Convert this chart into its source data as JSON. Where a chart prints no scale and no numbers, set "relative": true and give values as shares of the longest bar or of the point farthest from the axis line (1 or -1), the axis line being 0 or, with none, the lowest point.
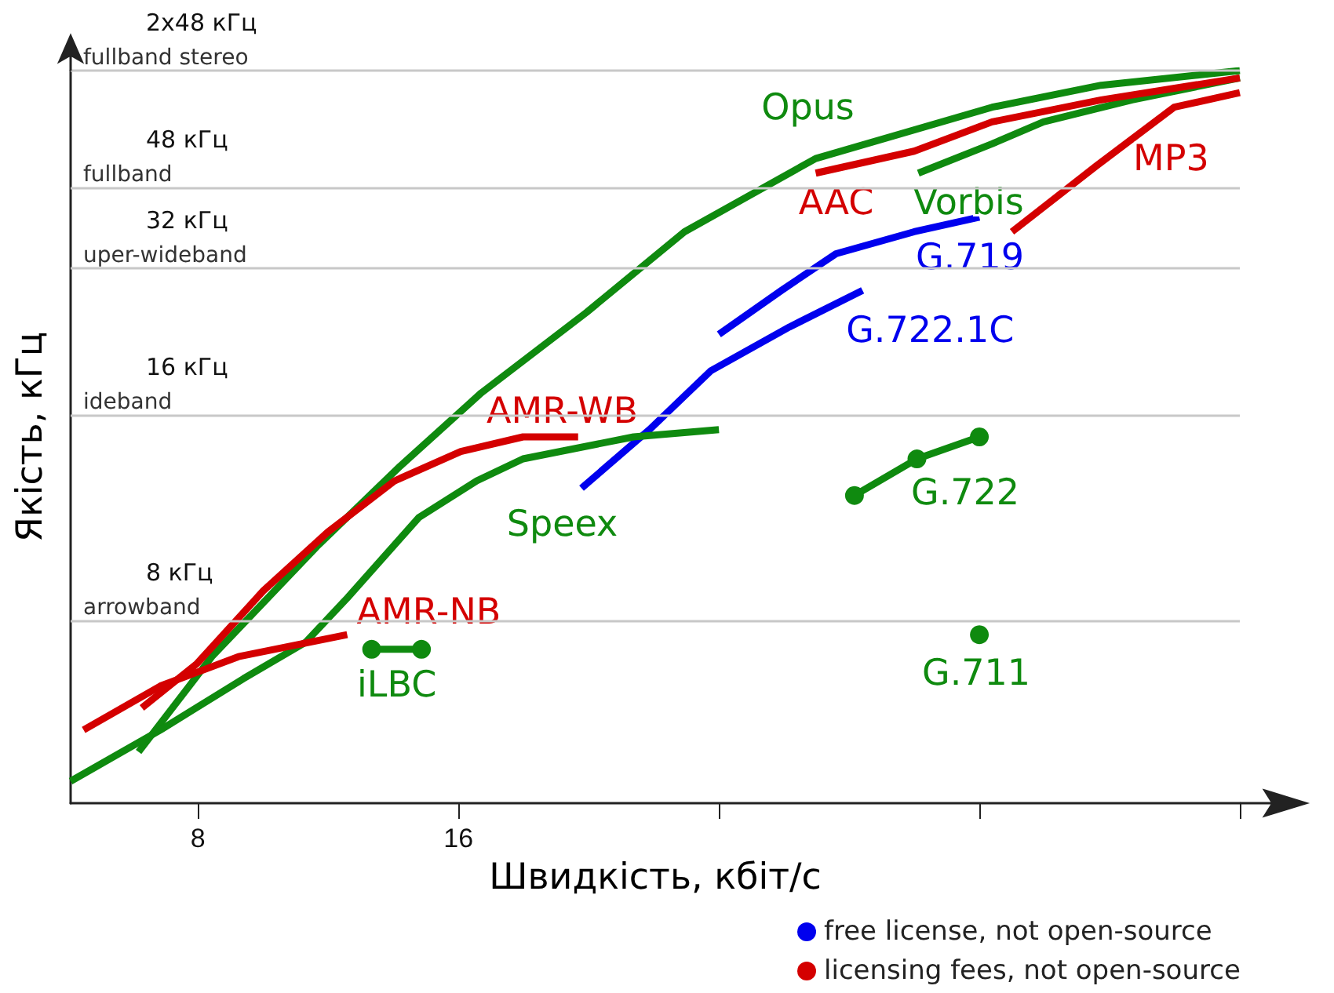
{
  "chart_data": {
    "type": "line",
    "relative": true,
    "xlabel": "Швидкість, кбіт/с",
    "ylabel": "Якість, кГц",
    "log": "x",
    "xlim": [
      5.7,
      128
    ],
    "xticks": [
      8,
      16,
      {
        "value": 32,
        "label": null
      },
      {
        "value": 64,
        "label": null
      },
      {
        "value": 128,
        "label": null
      }
    ],
    "series": [
      {
        "name": "Opus",
        "color": "#0f8a0f",
        "x": [
          6.83,
          8.3,
          10.97,
          13.7,
          17.0,
          22.5,
          29.2,
          41.4,
          66.2,
          88.5,
          128
        ],
        "values": [
          0.07,
          0.2,
          0.35,
          0.46,
          0.56,
          0.67,
          0.78,
          0.88,
          0.95,
          0.98,
          1.0
        ]
      },
      {
        "name": "Vorbis",
        "color": "#0f8a0f",
        "x": [
          54.4,
          66.2,
          75.9,
          96.1,
          128
        ],
        "values": [
          0.86,
          0.9,
          0.93,
          0.96,
          0.99
        ]
      },
      {
        "name": "AAC",
        "color": "#d40000",
        "x": [
          41.4,
          53.8,
          66.2,
          88.5,
          128
        ],
        "values": [
          0.86,
          0.89,
          0.93,
          0.96,
          0.99
        ]
      },
      {
        "name": "MP3",
        "color": "#d40000",
        "x": [
          69.8,
          87.4,
          107.5,
          128
        ],
        "values": [
          0.78,
          0.87,
          0.95,
          0.97
        ]
      },
      {
        "name": "G.719",
        "color": "#0000ee",
        "x": [
          32,
          37.8,
          43.7,
          53.8,
          64
        ],
        "values": [
          0.64,
          0.7,
          0.75,
          0.78,
          0.8
        ]
      },
      {
        "name": "G.722.1C",
        "color": "#0000ee",
        "x": [
          22.2,
          26.6,
          31.3,
          38.6,
          46.9
        ],
        "values": [
          0.43,
          0.51,
          0.59,
          0.65,
          0.7
        ]
      },
      {
        "name": "Speex",
        "color": "#0f8a0f",
        "x": [
          5.7,
          7.24,
          9.03,
          10.66,
          11.9,
          14.4,
          16.8,
          19.0,
          25.5,
          32
        ],
        "values": [
          0.03,
          0.1,
          0.17,
          0.22,
          0.28,
          0.39,
          0.44,
          0.47,
          0.5,
          0.51
        ]
      },
      {
        "name": "AMR-WB",
        "color": "#d40000",
        "x": [
          6.89,
          7.97,
          9.52,
          11.3,
          13.5,
          16.1,
          19.0,
          22.0
        ],
        "values": [
          0.13,
          0.19,
          0.29,
          0.37,
          0.44,
          0.48,
          0.5,
          0.5
        ]
      },
      {
        "name": "G.722",
        "color": "#0f8a0f",
        "marker": "circle",
        "x": [
          45.9,
          54.2,
          64
        ],
        "values": [
          0.42,
          0.47,
          0.5
        ]
      },
      {
        "name": "AMR-NB",
        "color": "#d40000",
        "x": [
          5.9,
          7.24,
          8.91,
          11.9
        ],
        "values": [
          0.1,
          0.16,
          0.2,
          0.23
        ]
      },
      {
        "name": "iLBC",
        "color": "#0f8a0f",
        "marker": "circle",
        "x": [
          12.7,
          14.5
        ],
        "values": [
          0.21,
          0.21
        ]
      },
      {
        "name": "G.711",
        "color": "#0f8a0f",
        "marker": "circle",
        "x": [
          64
        ],
        "values": [
          0.23
        ]
      }
    ],
    "ref_lines": [
      {
        "axis": "y",
        "value": 1.0,
        "label": "2x48 кГц\nfullband stereo"
      },
      {
        "axis": "y",
        "value": 0.84,
        "label": "48 кГц\nfullband"
      },
      {
        "axis": "y",
        "value": 0.73,
        "label": "32 кГц\nuper-wideband"
      },
      {
        "axis": "y",
        "value": 0.53,
        "label": "16 кГц\nideband"
      },
      {
        "axis": "y",
        "value": 0.25,
        "label": "8 кГц\narrowband"
      }
    ],
    "annotations": [
      "free license, not open-source",
      "licensing fees, not open-source"
    ]
  }
}
